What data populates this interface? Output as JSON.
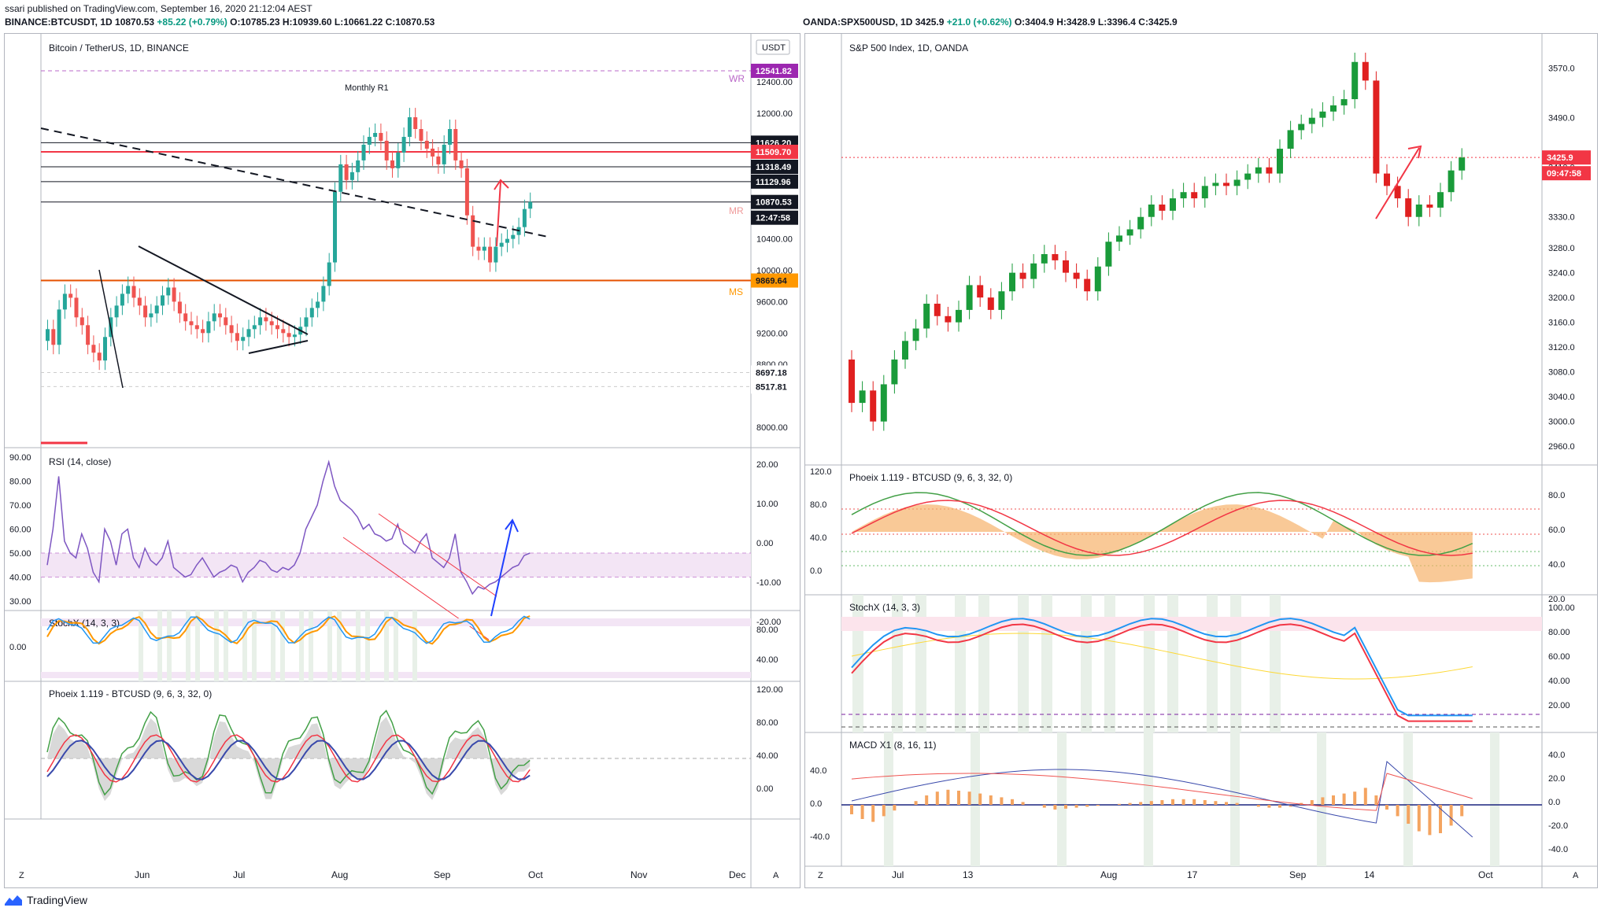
{
  "header": {
    "published_line": "ssari published on TradingView.com, September 16, 2020 21:12:04 AEST",
    "left_symbol": "BINANCE:BTCUSDT, 1D",
    "left_last": "10870.53",
    "left_change": "+85.22 (+0.79%)",
    "left_ohlc": "O:10785.23 H:10939.60 L:10661.22 C:10870.53",
    "right_symbol": "OANDA:SPX500USD, 1D",
    "right_last": "3425.9",
    "right_change": "+21.0 (+0.62%)",
    "right_ohlc": "O:3404.9 H:3428.9 L:3396.4 C:3425.9"
  },
  "footer": {
    "brand": "TradingView"
  },
  "colors": {
    "up": "#26a69a",
    "down": "#ef5350",
    "spx_up": "#1a9b3a",
    "spx_down": "#e02020",
    "purple": "#9c27b0",
    "orange": "#ff9800",
    "blue": "#2196f3",
    "red": "#f23645"
  },
  "chart_data": [
    {
      "id": "btc-price",
      "type": "candlestick",
      "title": "Bitcoin / TetherUS, 1D, BINANCE",
      "currency_label": "USDT",
      "y_ticks": [
        "12400.00",
        "12000.00",
        "10400.00",
        "10000.00",
        "9600.00",
        "9200.00",
        "8800.00",
        "8000.00"
      ],
      "x_ticks": [
        "Jun",
        "Jul",
        "Aug",
        "Sep",
        "Oct",
        "Nov",
        "Dec"
      ],
      "price_labels": [
        {
          "text": "12541.82",
          "kind": "wr"
        },
        {
          "text": "11626.20",
          "kind": "level"
        },
        {
          "text": "11509.70",
          "kind": "red"
        },
        {
          "text": "11318.49",
          "kind": "level"
        },
        {
          "text": "11129.96",
          "kind": "level"
        },
        {
          "text": "10870.53",
          "kind": "last"
        },
        {
          "text": "12:47:58",
          "kind": "countdown"
        },
        {
          "text": "9869.64",
          "kind": "ms"
        },
        {
          "text": "8697.18",
          "kind": "gray"
        },
        {
          "text": "8517.81",
          "kind": "gray"
        }
      ],
      "annotations": [
        "Monthly R1",
        "WR",
        "MR",
        "MS"
      ],
      "y_top": 12541.82,
      "y_bottom": 8000,
      "closes": [
        9250,
        9050,
        9500,
        9700,
        9650,
        9400,
        9300,
        9050,
        8950,
        8850,
        9150,
        9400,
        9550,
        9700,
        9800,
        9650,
        9550,
        9400,
        9450,
        9550,
        9680,
        9780,
        9600,
        9450,
        9350,
        9300,
        9250,
        9200,
        9350,
        9450,
        9400,
        9300,
        9200,
        9100,
        9150,
        9250,
        9300,
        9400,
        9350,
        9300,
        9250,
        9200,
        9150,
        9180,
        9280,
        9400,
        9520,
        9600,
        9800,
        10100,
        11000,
        11350,
        11150,
        11250,
        11400,
        11600,
        11700,
        11750,
        11650,
        11400,
        11300,
        11500,
        11700,
        11950,
        11800,
        11650,
        11550,
        11450,
        11350,
        11600,
        11800,
        11400,
        11300,
        10700,
        10300,
        10250,
        10300,
        10100,
        10300,
        10350,
        10400,
        10450,
        10550,
        10780,
        10870.53
      ],
      "opens": [
        9100,
        9250,
        9050,
        9500,
        9700,
        9650,
        9400,
        9300,
        9050,
        8950,
        8850,
        9150,
        9400,
        9550,
        9700,
        9800,
        9650,
        9550,
        9400,
        9450,
        9550,
        9680,
        9780,
        9600,
        9450,
        9350,
        9300,
        9250,
        9200,
        9350,
        9450,
        9400,
        9300,
        9200,
        9100,
        9150,
        9250,
        9300,
        9400,
        9350,
        9300,
        9250,
        9200,
        9150,
        9180,
        9280,
        9400,
        9520,
        9600,
        9800,
        10100,
        11000,
        11350,
        11150,
        11250,
        11400,
        11600,
        11700,
        11750,
        11650,
        11400,
        11300,
        11500,
        11700,
        11950,
        11800,
        11650,
        11550,
        11450,
        11350,
        11600,
        11800,
        11400,
        11300,
        10700,
        10300,
        10250,
        10300,
        10100,
        10300,
        10350,
        10400,
        10450,
        10550,
        10785.23
      ]
    },
    {
      "id": "btc-rsi",
      "type": "line",
      "title": "RSI (14, close)",
      "y_ticks_left": [
        "90.00",
        "80.00",
        "70.00",
        "60.00",
        "50.00",
        "40.00",
        "30.00"
      ],
      "y_ticks_right": [
        "20.00",
        "10.00",
        "0.00",
        "-10.00",
        "-20.00"
      ],
      "range": [
        30,
        90
      ],
      "values": [
        45,
        60,
        82,
        55,
        50,
        48,
        58,
        52,
        42,
        38,
        60,
        55,
        45,
        58,
        60,
        48,
        44,
        52,
        47,
        45,
        48,
        55,
        44,
        42,
        40,
        41,
        45,
        48,
        44,
        40,
        42,
        43,
        45,
        44,
        38,
        42,
        44,
        47,
        46,
        43,
        42,
        44,
        43,
        45,
        50,
        60,
        65,
        70,
        80,
        88,
        78,
        72,
        70,
        68,
        65,
        60,
        62,
        58,
        57,
        55,
        56,
        62,
        54,
        52,
        50,
        55,
        58,
        48,
        46,
        44,
        48,
        58,
        42,
        38,
        33,
        36,
        35,
        37,
        38,
        40,
        42,
        44,
        45,
        49,
        50
      ]
    },
    {
      "id": "btc-stochx",
      "type": "line",
      "title": "StochX (14, 3, 3)",
      "y_ticks_left": [
        "0.00"
      ],
      "y_ticks_right": [
        "80.00",
        "40.00"
      ]
    },
    {
      "id": "btc-phoeix",
      "type": "line",
      "title": "Phoeix 1.119 - BTCUSD (9, 6, 3, 32, 0)",
      "y_ticks_right": [
        "120.00",
        "80.00",
        "40.00",
        "0.00"
      ]
    },
    {
      "id": "spx-price",
      "type": "candlestick",
      "title": "S&P 500 Index, 1D, OANDA",
      "y_ticks": [
        "3570.0",
        "3490.0",
        "3410.0",
        "3330.0",
        "3280.0",
        "3240.0",
        "3200.0",
        "3160.0",
        "3120.0",
        "3080.0",
        "3040.0",
        "3000.0",
        "2960.0"
      ],
      "x_ticks": [
        "Jul",
        "13",
        "Aug",
        "17",
        "Sep",
        "14",
        "Oct"
      ],
      "price_labels": [
        {
          "text": "3425.9",
          "kind": "last"
        },
        {
          "text": "09:47:58",
          "kind": "countdown"
        }
      ],
      "y_top": 3600,
      "y_bottom": 2940,
      "closes": [
        3030,
        3050,
        3000,
        3060,
        3100,
        3130,
        3150,
        3190,
        3170,
        3160,
        3180,
        3220,
        3200,
        3180,
        3210,
        3240,
        3230,
        3255,
        3270,
        3260,
        3240,
        3230,
        3210,
        3250,
        3290,
        3300,
        3310,
        3330,
        3350,
        3340,
        3360,
        3370,
        3360,
        3380,
        3385,
        3380,
        3390,
        3400,
        3410,
        3400,
        3440,
        3470,
        3480,
        3490,
        3500,
        3510,
        3520,
        3580,
        3550,
        3400,
        3380,
        3360,
        3330,
        3350,
        3345,
        3370,
        3405,
        3425.9
      ],
      "opens": [
        3100,
        3030,
        3050,
        3000,
        3060,
        3100,
        3130,
        3150,
        3190,
        3170,
        3160,
        3180,
        3220,
        3200,
        3180,
        3210,
        3240,
        3230,
        3255,
        3270,
        3260,
        3240,
        3230,
        3210,
        3250,
        3290,
        3300,
        3310,
        3330,
        3350,
        3340,
        3360,
        3370,
        3360,
        3380,
        3385,
        3380,
        3390,
        3400,
        3410,
        3400,
        3440,
        3470,
        3480,
        3490,
        3500,
        3510,
        3520,
        3580,
        3550,
        3400,
        3380,
        3360,
        3330,
        3350,
        3345,
        3370,
        3404.9
      ]
    },
    {
      "id": "spx-phoeix",
      "type": "line",
      "title": "Phoeix 1.119 - BTCUSD (9, 6, 3, 32, 0)",
      "y_ticks_left": [
        "120.0",
        "80.0",
        "40.0",
        "0.0"
      ],
      "y_ticks_right": [
        "80.0",
        "60.0",
        "40.0",
        "20.0"
      ]
    },
    {
      "id": "spx-stochx",
      "type": "line",
      "title": "StochX (14, 3, 3)",
      "y_ticks_right": [
        "100.00",
        "80.00",
        "60.00",
        "40.00",
        "20.00"
      ]
    },
    {
      "id": "spx-macd",
      "type": "bar",
      "title": "MACD X1 (8, 16, 11)",
      "y_ticks_left": [
        "40.0",
        "0.0",
        "-40.0"
      ],
      "y_ticks_right": [
        "40.0",
        "20.0",
        "0.0",
        "-20.0",
        "-40.0"
      ],
      "histogram": [
        -10,
        -15,
        -18,
        -12,
        -6,
        0,
        4,
        10,
        14,
        16,
        15,
        14,
        12,
        10,
        8,
        6,
        3,
        0,
        -3,
        -5,
        -4,
        -3,
        -2,
        -1,
        0,
        1,
        2,
        3,
        4,
        5,
        6,
        6,
        6,
        5,
        4,
        3,
        2,
        0,
        -2,
        -3,
        -3,
        -2,
        2,
        5,
        8,
        10,
        12,
        14,
        18,
        10,
        -5,
        -12,
        -20,
        -28,
        -32,
        -30,
        -22,
        -12
      ]
    }
  ]
}
